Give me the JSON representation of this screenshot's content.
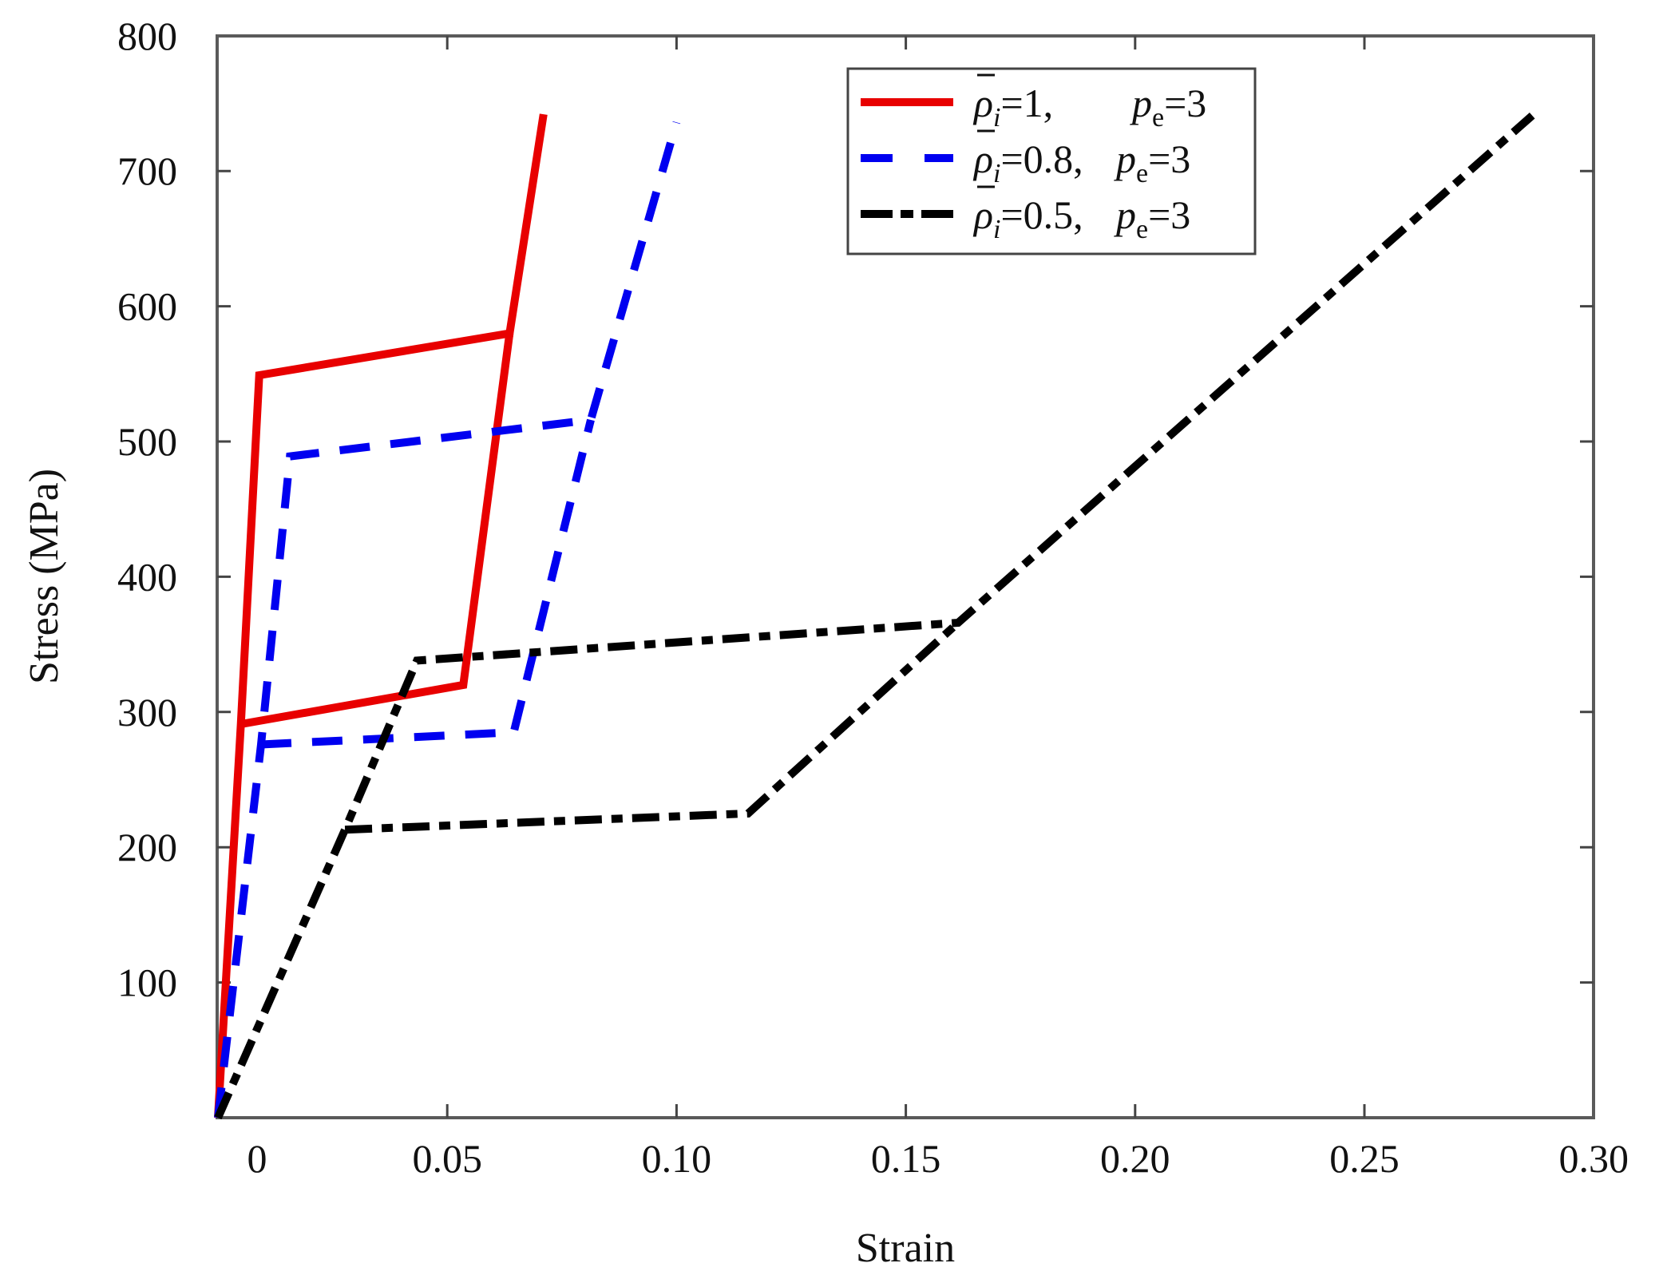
{
  "chart_data": {
    "type": "line",
    "title": "",
    "xlabel": "Strain",
    "ylabel": "Stress (MPa)",
    "xlim": [
      0,
      0.3
    ],
    "ylim": [
      0,
      800
    ],
    "grid": false,
    "legend_position": "upper right",
    "x_ticks": [
      {
        "value": 0,
        "label": "0"
      },
      {
        "value": 0.05,
        "label": "0.05"
      },
      {
        "value": 0.1,
        "label": "0.10"
      },
      {
        "value": 0.15,
        "label": "0.15"
      },
      {
        "value": 0.2,
        "label": "0.20"
      },
      {
        "value": 0.25,
        "label": "0.25"
      },
      {
        "value": 0.3,
        "label": "0.30"
      }
    ],
    "y_ticks": [
      {
        "value": 100,
        "label": "100"
      },
      {
        "value": 200,
        "label": "200"
      },
      {
        "value": 300,
        "label": "300"
      },
      {
        "value": 400,
        "label": "400"
      },
      {
        "value": 500,
        "label": "500"
      },
      {
        "value": 600,
        "label": "600"
      },
      {
        "value": 700,
        "label": "700"
      },
      {
        "value": 800,
        "label": "800"
      }
    ],
    "series": [
      {
        "name": "ρ̄i=1, pe=3",
        "legend": {
          "rho_value": "=1,",
          "pe_value": "=3"
        },
        "color": "#e80000",
        "style": "solid",
        "paths": [
          [
            [
              0,
              0
            ],
            [
              0.005,
              291
            ],
            [
              0.009,
              549
            ],
            [
              0.0636,
              580
            ],
            [
              0.071,
              742
            ]
          ],
          [
            [
              0.005,
              291
            ],
            [
              0.0535,
              320
            ],
            [
              0.0636,
              580
            ]
          ]
        ]
      },
      {
        "name": "ρ̄i=0.8, pe=3",
        "legend": {
          "rho_value": "=0.8,",
          "pe_value": "=3"
        },
        "color": "#0000f0",
        "style": "dashed",
        "paths": [
          [
            [
              0,
              0
            ],
            [
              0.0094,
              276
            ],
            [
              0.0157,
              489
            ],
            [
              0.0813,
              516
            ],
            [
              0.1,
              736
            ]
          ],
          [
            [
              0.0094,
              276
            ],
            [
              0.0645,
              285
            ],
            [
              0.0813,
              516
            ]
          ]
        ]
      },
      {
        "name": "ρ̄i=0.5, pe=3",
        "legend": {
          "rho_value": "=0.5,",
          "pe_value": "=3"
        },
        "color": "#000000",
        "style": "dashdot",
        "paths": [
          [
            [
              0,
              0
            ],
            [
              0.0277,
              213
            ],
            [
              0.0434,
              338
            ],
            [
              0.1614,
              366
            ],
            [
              0.2866,
              741
            ]
          ],
          [
            [
              0.0277,
              213
            ],
            [
              0.1156,
              225
            ],
            [
              0.1614,
              366
            ]
          ]
        ]
      }
    ]
  },
  "axes": {
    "xlabel": "Strain",
    "ylabel": "Stress (MPa)"
  },
  "legend": {
    "items": [
      {
        "rho_value": "=1,",
        "pe_value": "=3"
      },
      {
        "rho_value": "=0.8,",
        "pe_value": "=3"
      },
      {
        "rho_value": "=0.5,",
        "pe_value": "=3"
      }
    ],
    "rho_symbol": "ρ",
    "rho_subscript": "i",
    "pe_symbol": "p",
    "pe_subscript": "e"
  }
}
